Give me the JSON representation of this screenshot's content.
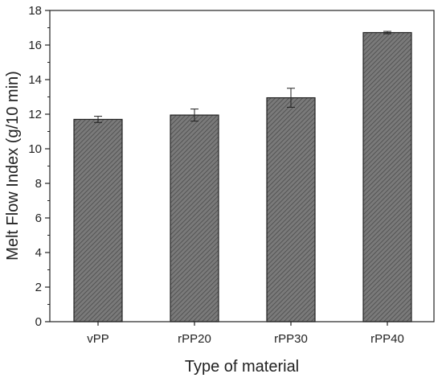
{
  "chart_data": {
    "type": "bar",
    "categories": [
      "vPP",
      "rPP20",
      "rPP30",
      "rPP40"
    ],
    "values": [
      11.7,
      11.95,
      12.95,
      16.72
    ],
    "errors": [
      0.18,
      0.35,
      0.55,
      0.07
    ],
    "xlabel": "Type of material",
    "ylabel": "Melt Flow Index (g/10 min)",
    "ylim": [
      0,
      18
    ],
    "yticks": [
      0,
      2,
      4,
      6,
      8,
      10,
      12,
      14,
      16,
      18
    ],
    "grid": false,
    "bar_color": "#6b6b6b",
    "bar_pattern": "diagonal-hatch"
  }
}
